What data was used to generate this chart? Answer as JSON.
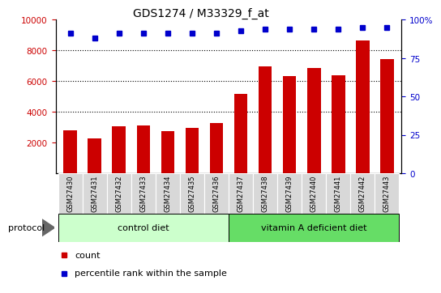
{
  "title": "GDS1274 / M33329_f_at",
  "samples": [
    "GSM27430",
    "GSM27431",
    "GSM27432",
    "GSM27433",
    "GSM27434",
    "GSM27435",
    "GSM27436",
    "GSM27437",
    "GSM27438",
    "GSM27439",
    "GSM27440",
    "GSM27441",
    "GSM27442",
    "GSM27443"
  ],
  "counts": [
    2800,
    2250,
    3050,
    3100,
    2750,
    2950,
    3250,
    5150,
    6950,
    6300,
    6850,
    6400,
    8650,
    7450
  ],
  "percentile_ranks": [
    91,
    88,
    91,
    91,
    91,
    91,
    91,
    93,
    94,
    94,
    94,
    94,
    95,
    95
  ],
  "bar_color": "#cc0000",
  "dot_color": "#0000cc",
  "ylim_left": [
    0,
    10000
  ],
  "ylim_right": [
    0,
    100
  ],
  "yticks_left": [
    2000,
    4000,
    6000,
    8000,
    10000
  ],
  "yticks_right": [
    0,
    25,
    50,
    75,
    100
  ],
  "ytick_labels_right": [
    "0",
    "25",
    "50",
    "75",
    "100%"
  ],
  "grid_values": [
    4000,
    6000,
    8000
  ],
  "control_diet_label": "control diet",
  "vit_a_label": "vitamin A deficient diet",
  "protocol_label": "protocol",
  "legend_count": "count",
  "legend_percentile": "percentile rank within the sample",
  "n_control": 7,
  "n_treatment": 7,
  "bg_color_plot": "#ffffff",
  "bg_color_sample": "#d8d8d8",
  "bg_color_control": "#ccffcc",
  "bg_color_treatment": "#66dd66",
  "title_fontsize": 10,
  "tick_fontsize": 7.5,
  "axis_label_color_left": "#cc0000",
  "axis_label_color_right": "#0000cc",
  "bar_width": 0.55
}
